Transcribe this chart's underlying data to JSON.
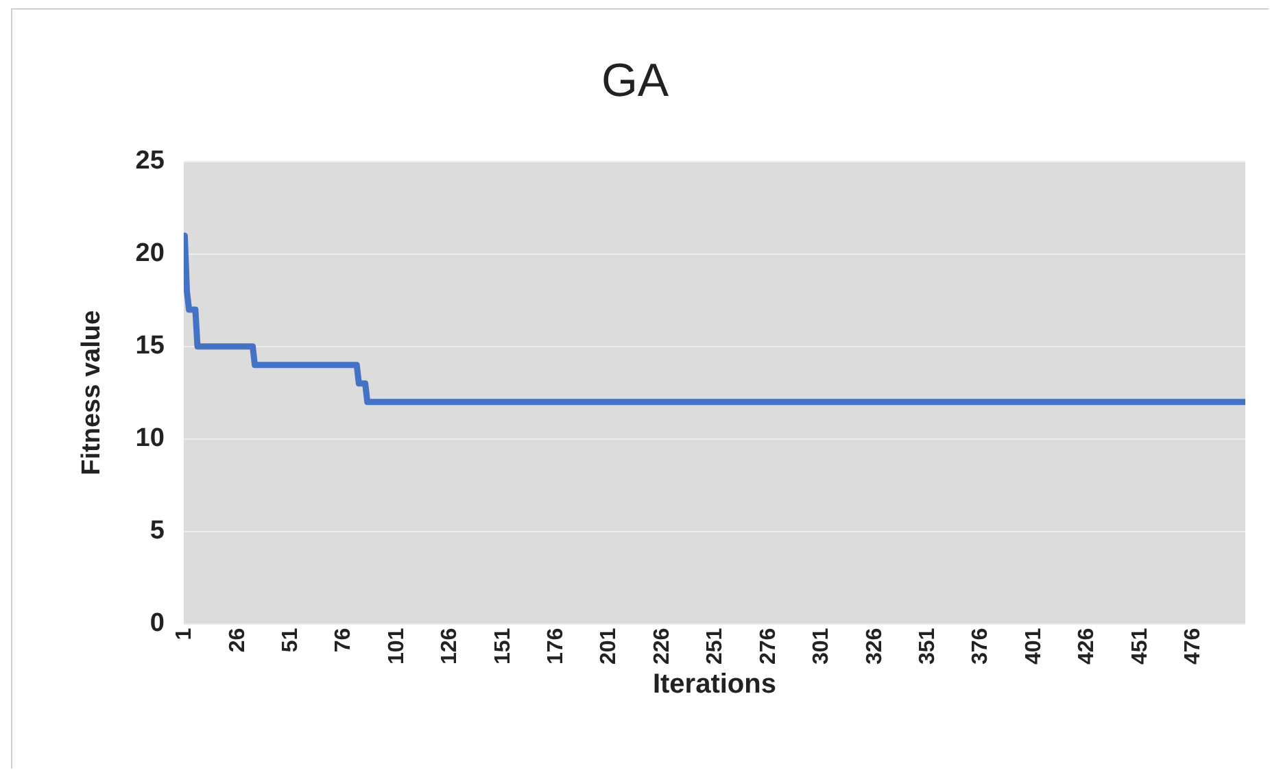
{
  "chart_data": {
    "type": "line",
    "title": "GA",
    "xlabel": "Iterations",
    "ylabel": "Fitness value",
    "x": [
      1,
      2,
      3,
      6,
      7,
      33,
      34,
      82,
      83,
      86,
      87,
      500
    ],
    "series": [
      {
        "color": "#4472c4",
        "values": [
          21,
          18,
          17,
          17,
          15,
          15,
          14,
          14,
          13,
          13,
          12,
          12
        ]
      }
    ],
    "xlim": [
      0.5,
      500.5
    ],
    "xticks": [
      1,
      26,
      51,
      76,
      101,
      126,
      151,
      176,
      201,
      226,
      251,
      276,
      301,
      326,
      351,
      376,
      401,
      426,
      451,
      476
    ],
    "ylim": [
      0,
      25
    ],
    "yticks": [
      0,
      5,
      10,
      15,
      20,
      25
    ],
    "grid": "y",
    "legend": false,
    "marker": "none",
    "line_style": "solid"
  }
}
